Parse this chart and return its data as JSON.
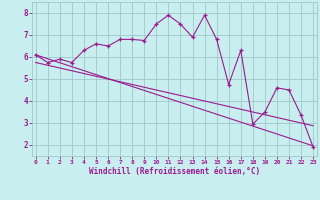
{
  "xlabel": "Windchill (Refroidissement éolien,°C)",
  "bg_color": "#c8eef0",
  "grid_color": "#a0c8cc",
  "line_color": "#9b1b8e",
  "x_data": [
    0,
    1,
    2,
    3,
    4,
    5,
    6,
    7,
    8,
    9,
    10,
    11,
    12,
    13,
    14,
    15,
    16,
    17,
    18,
    19,
    20,
    21,
    22,
    23
  ],
  "y_zigzag": [
    6.1,
    5.75,
    5.9,
    5.75,
    6.3,
    6.6,
    6.5,
    6.8,
    6.8,
    6.75,
    7.5,
    7.9,
    7.5,
    6.9,
    7.9,
    6.8,
    4.75,
    6.3,
    2.95,
    3.5,
    4.6,
    4.5,
    3.35,
    1.9
  ],
  "y_line1": [
    6.1,
    5.92,
    5.74,
    5.56,
    5.38,
    5.2,
    5.02,
    4.84,
    4.66,
    4.48,
    4.3,
    4.12,
    3.94,
    3.76,
    3.58,
    3.4,
    3.22,
    3.04,
    2.86,
    2.68,
    2.5,
    2.32,
    2.14,
    1.96
  ],
  "y_line2": [
    5.75,
    5.625,
    5.5,
    5.375,
    5.25,
    5.125,
    5.0,
    4.875,
    4.75,
    4.625,
    4.5,
    4.375,
    4.25,
    4.125,
    4.0,
    3.875,
    3.75,
    3.625,
    3.5,
    3.375,
    3.25,
    3.125,
    3.0,
    2.875
  ],
  "xlim": [
    0,
    23
  ],
  "ylim": [
    1.5,
    8.5
  ],
  "yticks": [
    2,
    3,
    4,
    5,
    6,
    7,
    8
  ],
  "xticks": [
    0,
    1,
    2,
    3,
    4,
    5,
    6,
    7,
    8,
    9,
    10,
    11,
    12,
    13,
    14,
    15,
    16,
    17,
    18,
    19,
    20,
    21,
    22,
    23
  ]
}
